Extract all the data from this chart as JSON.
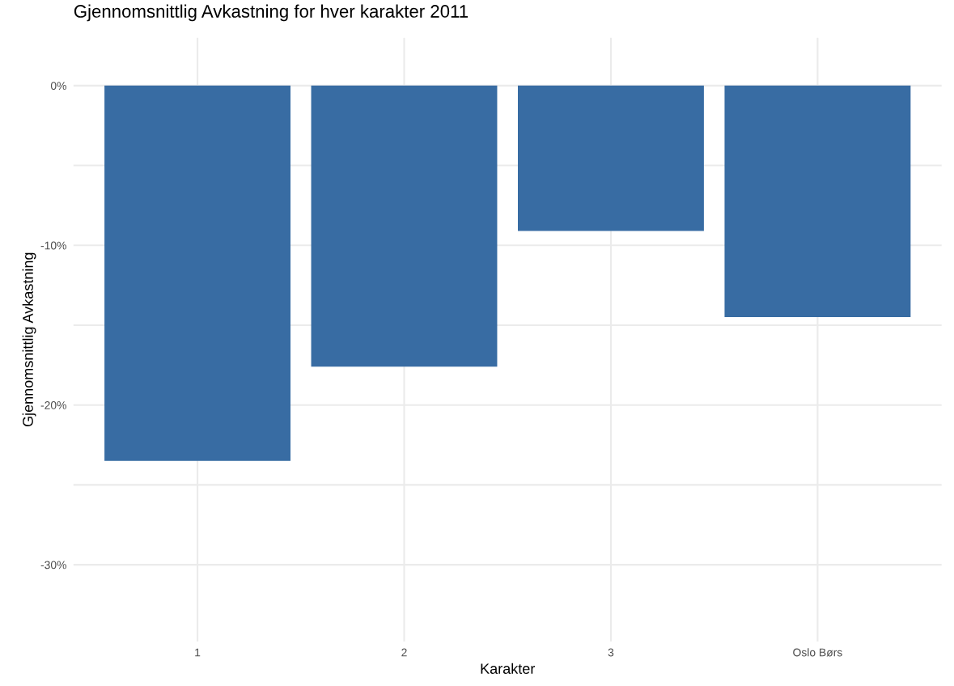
{
  "chart_data": {
    "type": "bar",
    "title": "Gjennomsnittlig Avkastning for hver karakter 2011",
    "xlabel": "Karakter",
    "ylabel": "Gjennomsnittlig Avkastning",
    "categories": [
      "1",
      "2",
      "3",
      "Oslo Børs"
    ],
    "values": [
      -23.5,
      -17.6,
      -9.1,
      -14.5
    ],
    "color": "#386ca3",
    "ylim": [
      -34.8,
      3
    ],
    "yticks": [
      {
        "value": -30,
        "label": "-30%"
      },
      {
        "value": -25,
        "label": null
      },
      {
        "value": -20,
        "label": "-20%"
      },
      {
        "value": -15,
        "label": null
      },
      {
        "value": -10,
        "label": "-10%"
      },
      {
        "value": -5,
        "label": null
      },
      {
        "value": 0,
        "label": "0%"
      }
    ],
    "grid": true
  }
}
